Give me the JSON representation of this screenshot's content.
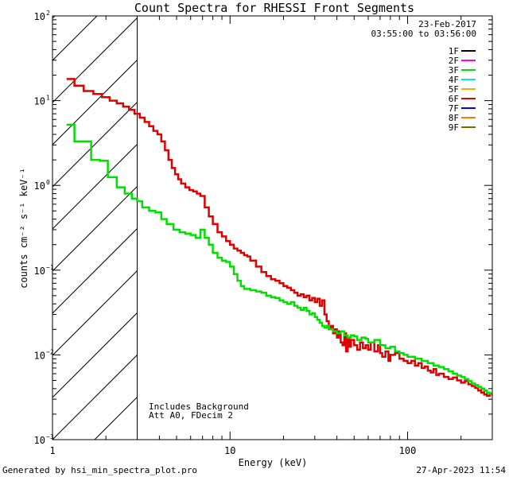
{
  "footer": {
    "generated": "Generated by hsi_min_spectra_plot.pro",
    "timestamp": "27-Apr-2023 11:54"
  },
  "chart_data": {
    "type": "line",
    "title": "Count Spectra for RHESSI Front Segments",
    "xlabel": "Energy (keV)",
    "ylabel": "counts cm⁻² s⁻¹ keV⁻¹",
    "xscale": "log",
    "yscale": "log",
    "xlim": [
      1.0,
      300
    ],
    "ylim": [
      0.001,
      100
    ],
    "x_ticks": [
      {
        "value": 1,
        "label": "1"
      },
      {
        "value": 10,
        "label": "10"
      },
      {
        "value": 100,
        "label": "100"
      }
    ],
    "y_ticks": [
      {
        "value": 0.001,
        "base": "10",
        "exp": "−3"
      },
      {
        "value": 0.01,
        "base": "10",
        "exp": "−2"
      },
      {
        "value": 0.1,
        "base": "10",
        "exp": "−1"
      },
      {
        "value": 1,
        "base": "10",
        "exp": "0"
      },
      {
        "value": 10,
        "base": "10",
        "exp": "1"
      },
      {
        "value": 100,
        "base": "10",
        "exp": "2"
      }
    ],
    "hatched_region": {
      "x_from": 1.0,
      "x_to": 3.0
    },
    "header": {
      "date": "23-Feb-2017",
      "time_range": "03:55:00 to 03:56:00"
    },
    "legend": [
      {
        "label": "1F",
        "color": "#000000"
      },
      {
        "label": "2F",
        "color": "#ff00ff"
      },
      {
        "label": "3F",
        "color": "#00e000"
      },
      {
        "label": "4F",
        "color": "#00e6ff"
      },
      {
        "label": "5F",
        "color": "#ffaa00"
      },
      {
        "label": "6F",
        "color": "#e00000"
      },
      {
        "label": "7F",
        "color": "#0000ff"
      },
      {
        "label": "8F",
        "color": "#ff7700"
      },
      {
        "label": "9F",
        "color": "#7a6a00"
      }
    ],
    "annotations": [
      "Includes Background",
      "Att A0, FDecim 2"
    ],
    "series": [
      {
        "name": "6F",
        "color": "#e00000",
        "points": [
          [
            1.2,
            18
          ],
          [
            1.33,
            15
          ],
          [
            1.5,
            13
          ],
          [
            1.7,
            12
          ],
          [
            1.9,
            11
          ],
          [
            2.1,
            10
          ],
          [
            2.3,
            9.3
          ],
          [
            2.5,
            8.5
          ],
          [
            2.7,
            7.8
          ],
          [
            2.9,
            7.0
          ],
          [
            3.1,
            6.3
          ],
          [
            3.3,
            5.6
          ],
          [
            3.5,
            5.0
          ],
          [
            3.7,
            4.4
          ],
          [
            3.9,
            4.0
          ],
          [
            4.1,
            3.3
          ],
          [
            4.3,
            2.6
          ],
          [
            4.5,
            2.0
          ],
          [
            4.7,
            1.6
          ],
          [
            4.9,
            1.35
          ],
          [
            5.1,
            1.18
          ],
          [
            5.3,
            1.05
          ],
          [
            5.6,
            0.95
          ],
          [
            5.9,
            0.88
          ],
          [
            6.2,
            0.85
          ],
          [
            6.5,
            0.8
          ],
          [
            6.8,
            0.75
          ],
          [
            7.2,
            0.55
          ],
          [
            7.6,
            0.43
          ],
          [
            8.0,
            0.35
          ],
          [
            8.5,
            0.28
          ],
          [
            9.0,
            0.25
          ],
          [
            9.5,
            0.22
          ],
          [
            10,
            0.2
          ],
          [
            10.5,
            0.18
          ],
          [
            11,
            0.17
          ],
          [
            11.5,
            0.16
          ],
          [
            12,
            0.15
          ],
          [
            12.5,
            0.145
          ],
          [
            13,
            0.13
          ],
          [
            14,
            0.11
          ],
          [
            15,
            0.095
          ],
          [
            16,
            0.085
          ],
          [
            17,
            0.078
          ],
          [
            18,
            0.075
          ],
          [
            19,
            0.07
          ],
          [
            20,
            0.065
          ],
          [
            21,
            0.062
          ],
          [
            22,
            0.058
          ],
          [
            23,
            0.054
          ],
          [
            24,
            0.05
          ],
          [
            25,
            0.052
          ],
          [
            26,
            0.048
          ],
          [
            27,
            0.05
          ],
          [
            28,
            0.044
          ],
          [
            29,
            0.047
          ],
          [
            30,
            0.042
          ],
          [
            31,
            0.046
          ],
          [
            32,
            0.038
          ],
          [
            33,
            0.044
          ],
          [
            34,
            0.03
          ],
          [
            35,
            0.025
          ],
          [
            36,
            0.02
          ],
          [
            37,
            0.022
          ],
          [
            38,
            0.018
          ],
          [
            39,
            0.02
          ],
          [
            40,
            0.016
          ],
          [
            41,
            0.019
          ],
          [
            42,
            0.014
          ],
          [
            43,
            0.013
          ],
          [
            44,
            0.018
          ],
          [
            45,
            0.011
          ],
          [
            46,
            0.016
          ],
          [
            47,
            0.0125
          ],
          [
            48,
            0.015
          ],
          [
            50,
            0.013
          ],
          [
            52,
            0.0115
          ],
          [
            54,
            0.014
          ],
          [
            56,
            0.012
          ],
          [
            58,
            0.013
          ],
          [
            60,
            0.0115
          ],
          [
            62,
            0.014
          ],
          [
            65,
            0.011
          ],
          [
            68,
            0.013
          ],
          [
            70,
            0.0105
          ],
          [
            72,
            0.0095
          ],
          [
            75,
            0.011
          ],
          [
            78,
            0.0085
          ],
          [
            80,
            0.01
          ],
          [
            85,
            0.0105
          ],
          [
            90,
            0.009
          ],
          [
            95,
            0.0085
          ],
          [
            100,
            0.008
          ],
          [
            105,
            0.0085
          ],
          [
            110,
            0.0075
          ],
          [
            115,
            0.008
          ],
          [
            120,
            0.007
          ],
          [
            125,
            0.0073
          ],
          [
            130,
            0.0065
          ],
          [
            135,
            0.0062
          ],
          [
            140,
            0.0068
          ],
          [
            145,
            0.0058
          ],
          [
            150,
            0.006
          ],
          [
            160,
            0.0055
          ],
          [
            170,
            0.0052
          ],
          [
            180,
            0.0054
          ],
          [
            190,
            0.005
          ],
          [
            200,
            0.0047
          ],
          [
            210,
            0.0049
          ],
          [
            220,
            0.0045
          ],
          [
            230,
            0.0043
          ],
          [
            240,
            0.0041
          ],
          [
            250,
            0.0038
          ],
          [
            260,
            0.0036
          ],
          [
            270,
            0.0034
          ],
          [
            280,
            0.0033
          ],
          [
            290,
            0.0035
          ],
          [
            300,
            0.0033
          ]
        ]
      },
      {
        "name": "3F",
        "color": "#00e000",
        "points": [
          [
            1.2,
            5.2
          ],
          [
            1.33,
            3.3
          ],
          [
            1.5,
            3.3
          ],
          [
            1.65,
            2.0
          ],
          [
            1.85,
            1.95
          ],
          [
            2.05,
            1.25
          ],
          [
            2.3,
            0.95
          ],
          [
            2.55,
            0.8
          ],
          [
            2.8,
            0.7
          ],
          [
            3.0,
            0.65
          ],
          [
            3.2,
            0.55
          ],
          [
            3.5,
            0.5
          ],
          [
            3.8,
            0.48
          ],
          [
            4.1,
            0.4
          ],
          [
            4.4,
            0.35
          ],
          [
            4.8,
            0.3
          ],
          [
            5.2,
            0.28
          ],
          [
            5.6,
            0.27
          ],
          [
            6.0,
            0.26
          ],
          [
            6.4,
            0.24
          ],
          [
            6.8,
            0.3
          ],
          [
            7.2,
            0.24
          ],
          [
            7.6,
            0.2
          ],
          [
            8.0,
            0.16
          ],
          [
            8.5,
            0.14
          ],
          [
            9.0,
            0.13
          ],
          [
            9.5,
            0.125
          ],
          [
            10,
            0.11
          ],
          [
            10.5,
            0.09
          ],
          [
            11,
            0.075
          ],
          [
            11.5,
            0.065
          ],
          [
            12,
            0.06
          ],
          [
            13,
            0.058
          ],
          [
            14,
            0.056
          ],
          [
            15,
            0.054
          ],
          [
            16,
            0.05
          ],
          [
            17,
            0.048
          ],
          [
            18,
            0.047
          ],
          [
            19,
            0.044
          ],
          [
            20,
            0.042
          ],
          [
            21,
            0.04
          ],
          [
            22,
            0.042
          ],
          [
            23,
            0.038
          ],
          [
            24,
            0.036
          ],
          [
            25,
            0.034
          ],
          [
            26,
            0.036
          ],
          [
            27,
            0.033
          ],
          [
            28,
            0.03
          ],
          [
            29,
            0.031
          ],
          [
            30,
            0.028
          ],
          [
            31,
            0.026
          ],
          [
            32,
            0.024
          ],
          [
            33,
            0.022
          ],
          [
            34,
            0.021
          ],
          [
            35,
            0.022
          ],
          [
            36,
            0.02
          ],
          [
            38,
            0.019
          ],
          [
            40,
            0.018
          ],
          [
            42,
            0.019
          ],
          [
            44,
            0.017
          ],
          [
            46,
            0.016
          ],
          [
            48,
            0.017
          ],
          [
            50,
            0.0165
          ],
          [
            52,
            0.015
          ],
          [
            55,
            0.016
          ],
          [
            58,
            0.0155
          ],
          [
            60,
            0.014
          ],
          [
            65,
            0.015
          ],
          [
            70,
            0.013
          ],
          [
            75,
            0.012
          ],
          [
            80,
            0.0125
          ],
          [
            85,
            0.011
          ],
          [
            90,
            0.0105
          ],
          [
            95,
            0.01
          ],
          [
            100,
            0.0095
          ],
          [
            110,
            0.009
          ],
          [
            120,
            0.0085
          ],
          [
            130,
            0.008
          ],
          [
            140,
            0.0075
          ],
          [
            150,
            0.0072
          ],
          [
            160,
            0.0068
          ],
          [
            170,
            0.0064
          ],
          [
            180,
            0.006
          ],
          [
            190,
            0.0057
          ],
          [
            200,
            0.0055
          ],
          [
            210,
            0.0052
          ],
          [
            220,
            0.0049
          ],
          [
            230,
            0.0046
          ],
          [
            240,
            0.0044
          ],
          [
            250,
            0.0042
          ],
          [
            260,
            0.004
          ],
          [
            270,
            0.0038
          ],
          [
            280,
            0.0036
          ],
          [
            290,
            0.0035
          ],
          [
            300,
            0.0034
          ]
        ]
      }
    ]
  }
}
